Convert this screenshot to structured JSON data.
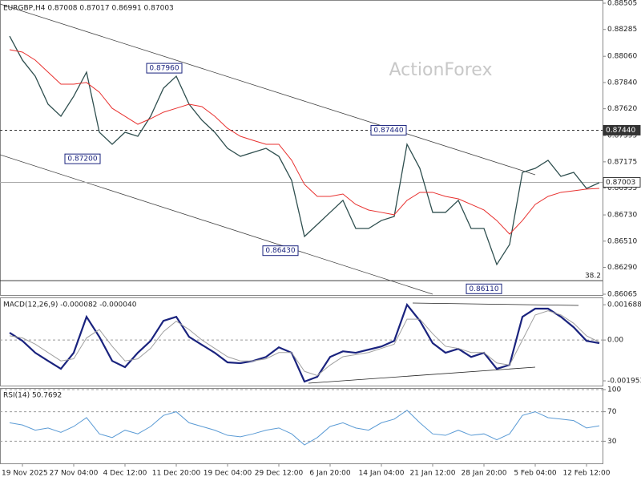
{
  "chart_data": [
    {
      "type": "line",
      "title": "EURGBP,H4 0.87008 0.87017 0.86991 0.87003",
      "watermark": "ActionForex",
      "ylim": [
        0.86065,
        0.88505
      ],
      "yticks": [
        0.88505,
        0.88285,
        {
          "value": 0.8806,
          "label": "0.88060"
        },
        {
          "value": 0.8784,
          "label": "0.87840"
        },
        {
          "value": 0.8762,
          "label": "0.87620"
        },
        0.87395,
        0.87175,
        0.86955,
        {
          "value": 0.8673,
          "label": "0.86730"
        },
        {
          "value": 0.8651,
          "label": "0.86510"
        },
        {
          "value": 0.8629,
          "label": "0.86290"
        },
        0.86065
      ],
      "series": [
        {
          "name": "EURGBP",
          "color": "#2f4f4f",
          "values": [
            0.88229,
            0.88028,
            0.87893,
            0.87658,
            0.87557,
            0.87725,
            0.87927,
            0.87423,
            0.87322,
            0.87423,
            0.87389,
            0.87557,
            0.87792,
            0.87893,
            0.87658,
            0.87524,
            0.87423,
            0.87288,
            0.87221,
            0.87255,
            0.87288,
            0.87221,
            0.87019,
            0.86549,
            0.8665,
            0.86751,
            0.86852,
            0.86616,
            0.86616,
            0.86683,
            0.86717,
            0.87322,
            0.8712,
            0.86751,
            0.86751,
            0.86852,
            0.86616,
            0.86616,
            0.86314,
            0.86482,
            0.87087,
            0.8712,
            0.87188,
            0.87053,
            0.87087,
            0.86952,
            0.87
          ]
        },
        {
          "name": "MA",
          "color": "#e8312f",
          "values": [
            0.88115,
            0.88095,
            0.88028,
            0.87927,
            0.87826,
            0.87826,
            0.8784,
            0.87759,
            0.87624,
            0.87557,
            0.8749,
            0.87537,
            0.87591,
            0.87624,
            0.87658,
            0.87638,
            0.87557,
            0.87456,
            0.87389,
            0.87355,
            0.87322,
            0.87322,
            0.87188,
            0.86986,
            0.86885,
            0.86885,
            0.86905,
            0.86818,
            0.86771,
            0.86751,
            0.86731,
            0.86852,
            0.86919,
            0.86919,
            0.86885,
            0.86865,
            0.86818,
            0.86771,
            0.86683,
            0.86569,
            0.86683,
            0.86818,
            0.86885,
            0.86919,
            0.86932,
            0.86946,
            0.86952
          ]
        }
      ],
      "annotations": [
        {
          "value": 0.8796,
          "label": "0.87960"
        },
        {
          "value": 0.872,
          "label": "0.87200"
        },
        {
          "value": 0.8643,
          "label": "0.86430"
        },
        {
          "value": 0.8611,
          "label": "0.86110"
        },
        {
          "value": 0.8744,
          "label": "0.87440"
        }
      ],
      "levels": [
        {
          "value": 0.8744,
          "label": "0.87440",
          "style": "dashed"
        },
        {
          "value": 0.87003,
          "label": "0.87003",
          "style": "solid"
        }
      ],
      "fib_level": {
        "value": 0.86179,
        "label": "38.2"
      }
    },
    {
      "type": "line",
      "title": "MACD(12,26,9) -0.000082 -0.000040",
      "ylim": [
        -0.00222,
        0.002
      ],
      "yticks": [
        0.001688,
        {
          "value": 0,
          "label": "0.00"
        },
        -0.001953
      ],
      "zero_line": true,
      "series": [
        {
          "name": "MACD",
          "color": "#1a237e",
          "values": [
            0.00035,
            -4e-05,
            -0.00061,
            -0.001,
            -0.00138,
            -0.00061,
            0.00111,
            0.00015,
            -0.001,
            -0.0013,
            -0.00061,
            -4e-05,
            0.00092,
            0.00111,
            0.00015,
            -0.00023,
            -0.00061,
            -0.00107,
            -0.00111,
            -0.001,
            -0.00081,
            -0.00035,
            -0.00061,
            -0.00199,
            -0.00176,
            -0.00081,
            -0.00054,
            -0.00061,
            -0.00046,
            -0.00031,
            -4e-05,
            0.00169,
            0.00092,
            -0.00015,
            -0.00061,
            -0.00042,
            -0.00081,
            -0.00061,
            -0.00138,
            -0.00119,
            0.00111,
            0.0015,
            0.0015,
            0.00111,
            0.00061,
            -4e-05,
            -0.00015
          ]
        },
        {
          "name": "Signal",
          "color": "#a0a0a0",
          "values": [
            0.0002,
            0.0001,
            -0.0002,
            -0.0006,
            -0.001,
            -0.0009,
            0.0001,
            0.0005,
            -0.0003,
            -0.001,
            -0.0009,
            -0.0004,
            0.0004,
            0.0009,
            0.0005,
            0,
            -0.0004,
            -0.0008,
            -0.001,
            -0.001,
            -0.0009,
            -0.0006,
            -0.0006,
            -0.0015,
            -0.0017,
            -0.0012,
            -0.0008,
            -0.0007,
            -0.0006,
            -0.0004,
            -0.0002,
            0.001,
            0.001,
            0.0003,
            -0.0003,
            -0.0004,
            -0.0006,
            -0.0006,
            -0.0011,
            -0.0012,
            0,
            0.0012,
            0.0014,
            0.0012,
            0.0008,
            0.0002,
            -0.0001
          ]
        }
      ]
    },
    {
      "type": "line",
      "title": "RSI(14) 50.7692",
      "ylim": [
        0,
        100
      ],
      "yticks": [
        100,
        70,
        30
      ],
      "grid": true,
      "categories": [
        null,
        "19 Nov 2025",
        null,
        null,
        null,
        "27 Nov 04:00",
        null,
        null,
        null,
        "4 Dec 12:00",
        null,
        null,
        null,
        "11 Dec 20:00",
        null,
        null,
        null,
        "19 Dec 04:00",
        null,
        null,
        null,
        "29 Dec 12:00",
        null,
        null,
        null,
        "6 Jan 20:00",
        null,
        null,
        null,
        "14 Jan 04:00",
        null,
        null,
        null,
        "21 Jan 12:00",
        null,
        null,
        null,
        "28 Jan 20:00",
        null,
        null,
        null,
        "5 Feb 04:00",
        null,
        null,
        null,
        "12 Feb 12:00",
        null
      ],
      "series": [
        {
          "name": "RSI",
          "color": "#5b9bd5",
          "values": [
            55,
            52,
            45,
            48,
            42,
            50,
            62,
            40,
            35,
            45,
            40,
            50,
            65,
            70,
            55,
            50,
            45,
            38,
            36,
            40,
            45,
            48,
            40,
            25,
            35,
            50,
            55,
            48,
            45,
            55,
            60,
            72,
            55,
            40,
            38,
            45,
            38,
            40,
            32,
            40,
            65,
            70,
            62,
            60,
            58,
            48,
            51
          ]
        }
      ]
    }
  ]
}
